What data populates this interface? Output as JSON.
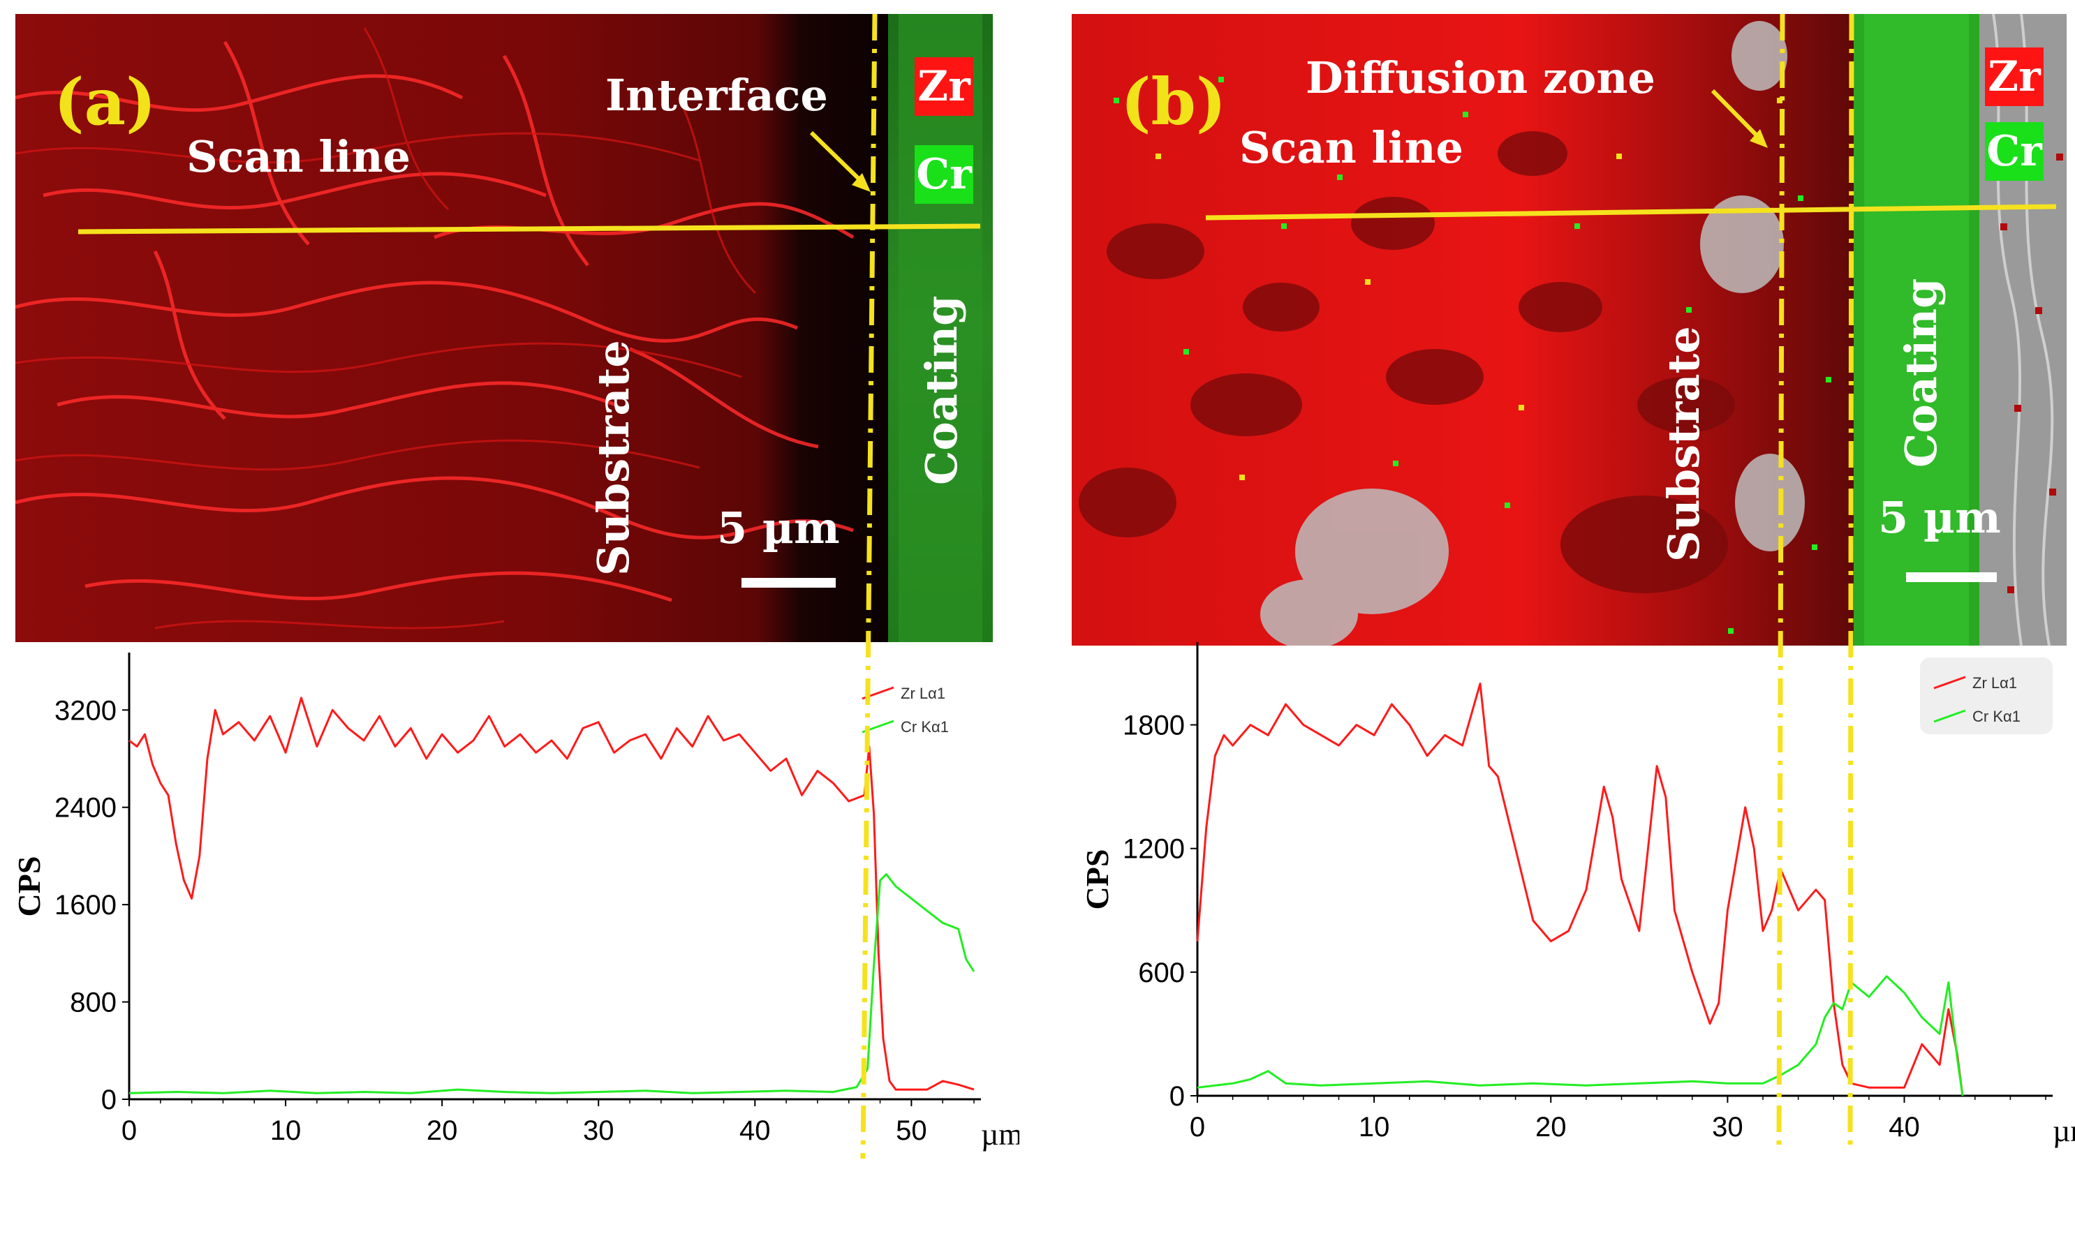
{
  "colors": {
    "zr": "#ff1a1a",
    "cr": "#22ee22",
    "scan_line": "#f5e21e",
    "interface_line": "#f5e21e",
    "label_yellow": "#f2e21a"
  },
  "panel_a": {
    "letter": "(a)",
    "scan_label": "Scan line",
    "interface_label": "Interface",
    "substrate_label": "Substrate",
    "coating_label": "Coating",
    "scale_label": "5 µm",
    "legend_zr": "Zr",
    "legend_cr": "Cr"
  },
  "panel_b": {
    "letter": "(b)",
    "scan_label": "Scan line",
    "diffusion_label": "Diffusion zone",
    "substrate_label": "Substrate",
    "coating_label": "Coating",
    "scale_label": "5 µm",
    "legend_zr": "Zr",
    "legend_cr": "Cr"
  },
  "chart_data": [
    {
      "type": "line",
      "panel": "a",
      "xlabel": "µm",
      "ylabel": "CPS",
      "xlim": [
        0,
        54
      ],
      "ylim": [
        0,
        3500
      ],
      "xticks": [
        "0",
        "10",
        "20",
        "30",
        "40",
        "50"
      ],
      "yticks": [
        "0",
        "800",
        "1600",
        "2400",
        "3200"
      ],
      "legend": [
        "Zr Lα1",
        "Cr Kα1"
      ],
      "legend_position": "top-right",
      "interface_x": 47.5,
      "series": [
        {
          "name": "Zr Lα1",
          "color": "#ff1a1a",
          "x": [
            0,
            0.5,
            1,
            1.5,
            2,
            2.5,
            3,
            3.5,
            4,
            4.5,
            5,
            5.5,
            6,
            7,
            8,
            9,
            10,
            11,
            12,
            13,
            14,
            15,
            16,
            17,
            18,
            19,
            20,
            21,
            22,
            23,
            24,
            25,
            26,
            27,
            28,
            29,
            30,
            31,
            32,
            33,
            34,
            35,
            36,
            37,
            38,
            39,
            40,
            41,
            42,
            43,
            44,
            45,
            46,
            47,
            47.3,
            47.6,
            47.9,
            48.2,
            48.6,
            49,
            50,
            51,
            52,
            53,
            54
          ],
          "y": [
            2950,
            2900,
            3000,
            2750,
            2600,
            2500,
            2100,
            1800,
            1650,
            2000,
            2800,
            3200,
            3000,
            3100,
            2950,
            3150,
            2850,
            3300,
            2900,
            3200,
            3050,
            2950,
            3150,
            2900,
            3050,
            2800,
            3000,
            2850,
            2950,
            3150,
            2900,
            3000,
            2850,
            2950,
            2800,
            3050,
            3100,
            2850,
            2950,
            3000,
            2800,
            3050,
            2900,
            3150,
            2950,
            3000,
            2850,
            2700,
            2800,
            2500,
            2700,
            2600,
            2450,
            2500,
            2900,
            2350,
            1200,
            500,
            150,
            80,
            80,
            80,
            150,
            120,
            80
          ]
        },
        {
          "name": "Cr Kα1",
          "color": "#22ee22",
          "x": [
            0,
            3,
            6,
            9,
            12,
            15,
            18,
            21,
            24,
            27,
            30,
            33,
            36,
            39,
            42,
            45,
            46.5,
            47.2,
            47.6,
            48,
            48.4,
            49,
            50,
            51,
            52,
            53,
            53.5,
            54
          ],
          "y": [
            50,
            60,
            50,
            70,
            50,
            60,
            50,
            80,
            60,
            50,
            60,
            70,
            50,
            60,
            70,
            60,
            100,
            250,
            1100,
            1800,
            1850,
            1750,
            1650,
            1550,
            1450,
            1400,
            1150,
            1050
          ]
        }
      ]
    },
    {
      "type": "line",
      "panel": "b",
      "xlabel": "µm",
      "ylabel": "CPS",
      "xlim": [
        0,
        48
      ],
      "ylim": [
        0,
        2100
      ],
      "xticks": [
        "0",
        "10",
        "20",
        "30",
        "40"
      ],
      "yticks": [
        "0",
        "600",
        "1200",
        "1800"
      ],
      "legend": [
        "Zr Lα1",
        "Cr Kα1"
      ],
      "legend_position": "top-right",
      "diffusion_zone_x": [
        32.3,
        35.8
      ],
      "series": [
        {
          "name": "Zr Lα1",
          "color": "#ff1a1a",
          "x": [
            0,
            0.5,
            1,
            1.5,
            2,
            3,
            4,
            5,
            6,
            7,
            8,
            9,
            10,
            11,
            12,
            13,
            14,
            15,
            16,
            16.5,
            17,
            18,
            19,
            20,
            21,
            22,
            23,
            23.5,
            24,
            25,
            26,
            26.5,
            27,
            28,
            29,
            29.5,
            30,
            31,
            31.5,
            32,
            32.5,
            33,
            34,
            35,
            35.5,
            36,
            36.5,
            37,
            38,
            39,
            40,
            41,
            41.5,
            42,
            42.5,
            43,
            43.3
          ],
          "y": [
            750,
            1300,
            1650,
            1750,
            1700,
            1800,
            1750,
            1900,
            1800,
            1750,
            1700,
            1800,
            1750,
            1900,
            1800,
            1650,
            1750,
            1700,
            2000,
            1600,
            1550,
            1200,
            850,
            750,
            800,
            1000,
            1500,
            1350,
            1050,
            800,
            1600,
            1450,
            900,
            600,
            350,
            450,
            900,
            1400,
            1200,
            800,
            900,
            1100,
            900,
            1000,
            950,
            450,
            150,
            60,
            40,
            40,
            40,
            250,
            200,
            150,
            420,
            200,
            0
          ]
        },
        {
          "name": "Cr Kα1",
          "color": "#22ee22",
          "x": [
            0,
            2,
            3,
            4,
            5,
            7,
            10,
            13,
            16,
            19,
            22,
            25,
            28,
            30,
            32,
            33,
            34,
            35,
            35.5,
            36,
            36.5,
            37,
            38,
            39,
            40,
            41,
            42,
            42.5,
            43,
            43.3
          ],
          "y": [
            40,
            60,
            80,
            120,
            60,
            50,
            60,
            70,
            50,
            60,
            50,
            60,
            70,
            60,
            60,
            100,
            150,
            250,
            380,
            450,
            420,
            550,
            480,
            580,
            500,
            380,
            300,
            550,
            180,
            0
          ]
        }
      ]
    }
  ]
}
